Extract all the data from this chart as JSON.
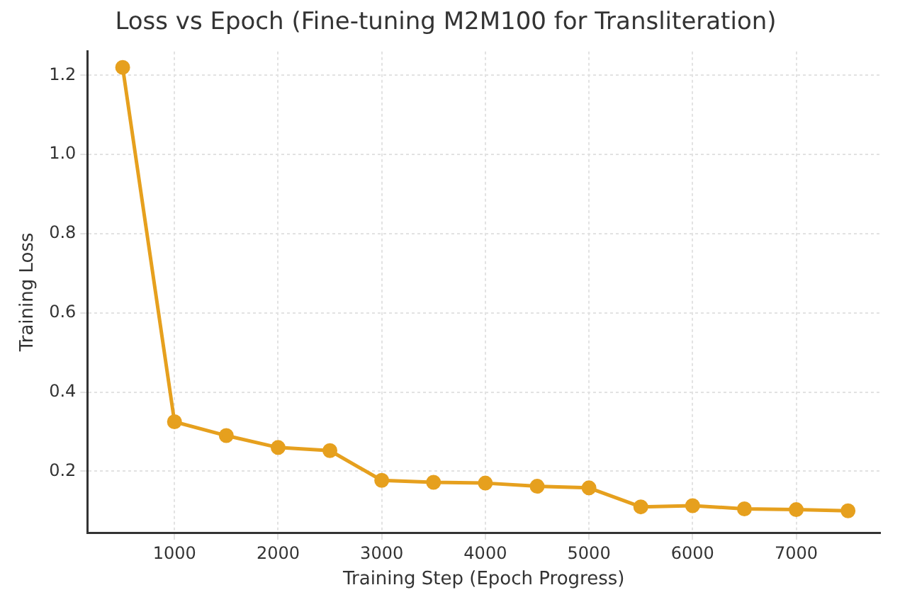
{
  "chart_data": {
    "type": "line",
    "title": "Loss vs Epoch (Fine-tuning M2M100 for Transliteration)",
    "xlabel": "Training Step (Epoch Progress)",
    "ylabel": "Training Loss",
    "x": [
      500,
      1000,
      1500,
      2000,
      2500,
      3000,
      3500,
      4000,
      4500,
      5000,
      5500,
      6000,
      6500,
      7000,
      7500
    ],
    "series": [
      {
        "color": "#e6a01e",
        "values": [
          1.22,
          0.325,
          0.29,
          0.26,
          0.252,
          0.177,
          0.172,
          0.17,
          0.162,
          0.158,
          0.11,
          0.113,
          0.105,
          0.103,
          0.1
        ]
      }
    ],
    "xlim": [
      160,
      7810
    ],
    "ylim": [
      0.045,
      1.26
    ],
    "xticks": [
      1000,
      2000,
      3000,
      4000,
      5000,
      6000,
      7000
    ],
    "yticks": [
      0.2,
      0.4,
      0.6,
      0.8,
      {
        "value": 1,
        "label": "1.0"
      },
      1.2
    ],
    "grid": true,
    "marker": "circle",
    "line_style": "solid",
    "legend": false
  }
}
